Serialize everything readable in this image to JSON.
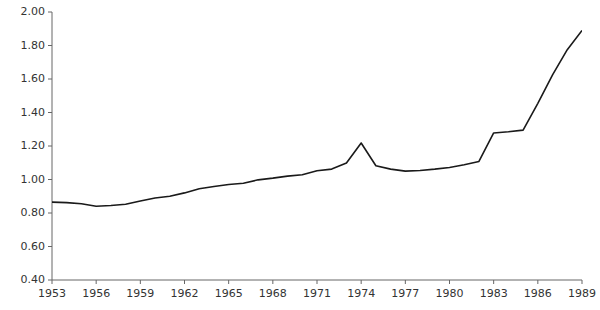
{
  "chart_data": {
    "type": "line",
    "x": [
      1953,
      1954,
      1955,
      1956,
      1957,
      1958,
      1959,
      1960,
      1961,
      1962,
      1963,
      1964,
      1965,
      1966,
      1967,
      1968,
      1969,
      1970,
      1971,
      1972,
      1973,
      1974,
      1975,
      1976,
      1977,
      1978,
      1979,
      1980,
      1981,
      1982,
      1983,
      1984,
      1985,
      1986,
      1987,
      1988,
      1989
    ],
    "values": [
      0.865,
      0.862,
      0.855,
      0.84,
      0.845,
      0.852,
      0.872,
      0.89,
      0.9,
      0.92,
      0.945,
      0.958,
      0.97,
      0.978,
      0.998,
      1.008,
      1.02,
      1.028,
      1.052,
      1.062,
      1.098,
      1.218,
      1.082,
      1.062,
      1.05,
      1.054,
      1.062,
      1.072,
      1.088,
      1.108,
      1.278,
      1.285,
      1.295,
      1.455,
      1.625,
      1.775,
      1.89
    ],
    "color": "#1a1a1a",
    "xlim": [
      1953,
      1989
    ],
    "ylim": [
      0.4,
      2.0
    ],
    "xticks": [
      1953,
      1956,
      1959,
      1962,
      1965,
      1968,
      1971,
      1974,
      1977,
      1980,
      1983,
      1986,
      1989
    ],
    "yticks": [
      {
        "value": 0.4,
        "label": "0.40"
      },
      {
        "value": 0.6,
        "label": "0.60"
      },
      {
        "value": 0.8,
        "label": "0.80"
      },
      {
        "value": 1.0,
        "label": "1.00"
      },
      {
        "value": 1.2,
        "label": "1.20"
      },
      {
        "value": 1.4,
        "label": "1.40"
      },
      {
        "value": 1.6,
        "label": "1.60"
      },
      {
        "value": 1.8,
        "label": "1.80"
      },
      {
        "value": 2.0,
        "label": "2.00"
      }
    ],
    "grid": false
  }
}
